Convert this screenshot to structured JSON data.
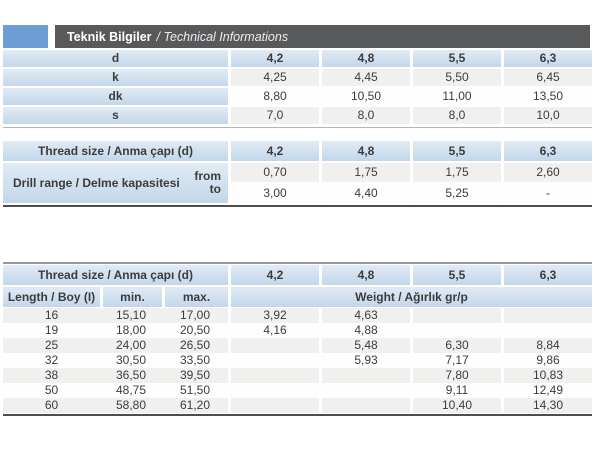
{
  "title": {
    "main": "Teknik Bilgiler",
    "sub": "/ Technical Informations"
  },
  "colors": {
    "accent_blue": "#6d9ed3",
    "title_bar_gray": "#58595b",
    "header_cell_blue": "#c9dcee",
    "dark_border": "#4e4e4e"
  },
  "columns": [
    "4,2",
    "4,8",
    "5,5",
    "6,3"
  ],
  "dims_table": {
    "rows": [
      {
        "label": "d",
        "values": [
          "4,2",
          "4,8",
          "5,5",
          "6,3"
        ]
      },
      {
        "label": "k",
        "values": [
          "4,25",
          "4,45",
          "5,50",
          "6,45"
        ]
      },
      {
        "label": "dk",
        "values": [
          "8,80",
          "10,50",
          "11,00",
          "13,50"
        ]
      },
      {
        "label": "s",
        "values": [
          "7,0",
          "8,0",
          "8,0",
          "10,0"
        ]
      }
    ]
  },
  "drill_table": {
    "header_label": "Thread size / Anma çapı (d)",
    "row_label": "Drill range / Delme kapasitesi",
    "from_label": "from",
    "to_label": "to",
    "from": [
      "0,70",
      "1,75",
      "1,75",
      "2,60"
    ],
    "to": [
      "3,00",
      "4,40",
      "5,25",
      "-"
    ]
  },
  "weight_table": {
    "header_label": "Thread size / Anma çapı (d)",
    "length_label": "Length / Boy (I)",
    "min_label": "min.",
    "max_label": "max.",
    "weight_label": "Weight / Ağırlık gr/p",
    "rows": [
      {
        "length": "16",
        "min": "15,10",
        "max": "17,00",
        "weights": [
          "3,92",
          "4,63",
          "",
          ""
        ]
      },
      {
        "length": "19",
        "min": "18,00",
        "max": "20,50",
        "weights": [
          "4,16",
          "4,88",
          "",
          ""
        ]
      },
      {
        "length": "25",
        "min": "24,00",
        "max": "26,50",
        "weights": [
          "",
          "5,48",
          "6,30",
          "8,84"
        ]
      },
      {
        "length": "32",
        "min": "30,50",
        "max": "33,50",
        "weights": [
          "",
          "5,93",
          "7,17",
          "9,86"
        ]
      },
      {
        "length": "38",
        "min": "36,50",
        "max": "39,50",
        "weights": [
          "",
          "",
          "7,80",
          "10,83"
        ]
      },
      {
        "length": "50",
        "min": "48,75",
        "max": "51,50",
        "weights": [
          "",
          "",
          "9,11",
          "12,49"
        ]
      },
      {
        "length": "60",
        "min": "58,80",
        "max": "61,20",
        "weights": [
          "",
          "",
          "10,40",
          "14,30"
        ]
      }
    ]
  }
}
